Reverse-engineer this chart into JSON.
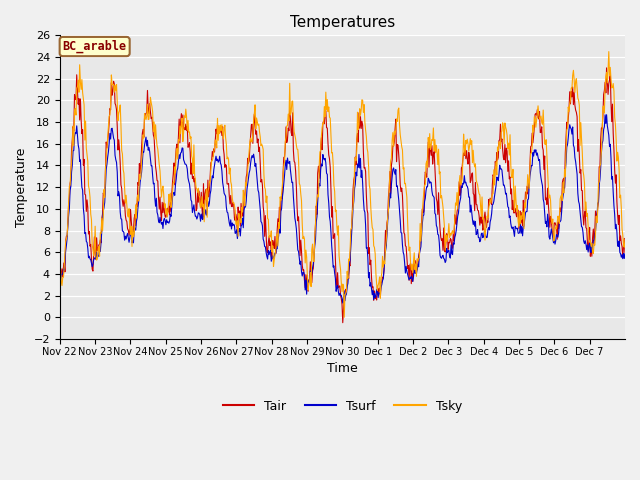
{
  "title": "Temperatures",
  "xlabel": "Time",
  "ylabel": "Temperature",
  "ylim": [
    -2,
    26
  ],
  "yticks": [
    -2,
    0,
    2,
    4,
    6,
    8,
    10,
    12,
    14,
    16,
    18,
    20,
    22,
    24,
    26
  ],
  "legend_label": "BC_arable",
  "series_labels": [
    "Tair",
    "Tsurf",
    "Tsky"
  ],
  "colors": [
    "#cc0000",
    "#0000cc",
    "#ffa500"
  ],
  "fig_facecolor": "#f0f0f0",
  "ax_facecolor": "#e8e8e8",
  "figsize": [
    6.4,
    4.8
  ],
  "dpi": 100,
  "xtick_labels": [
    "Nov 22",
    "Nov 23",
    "Nov 24",
    "Nov 25",
    "Nov 26",
    "Nov 27",
    "Nov 28",
    "Nov 29",
    "Nov 30",
    "Dec 1",
    "Dec 2",
    "Dec 3",
    "Dec 4",
    "Dec 5",
    "Dec 6",
    "Dec 7"
  ],
  "n_days": 16,
  "pts_per_day": 48
}
